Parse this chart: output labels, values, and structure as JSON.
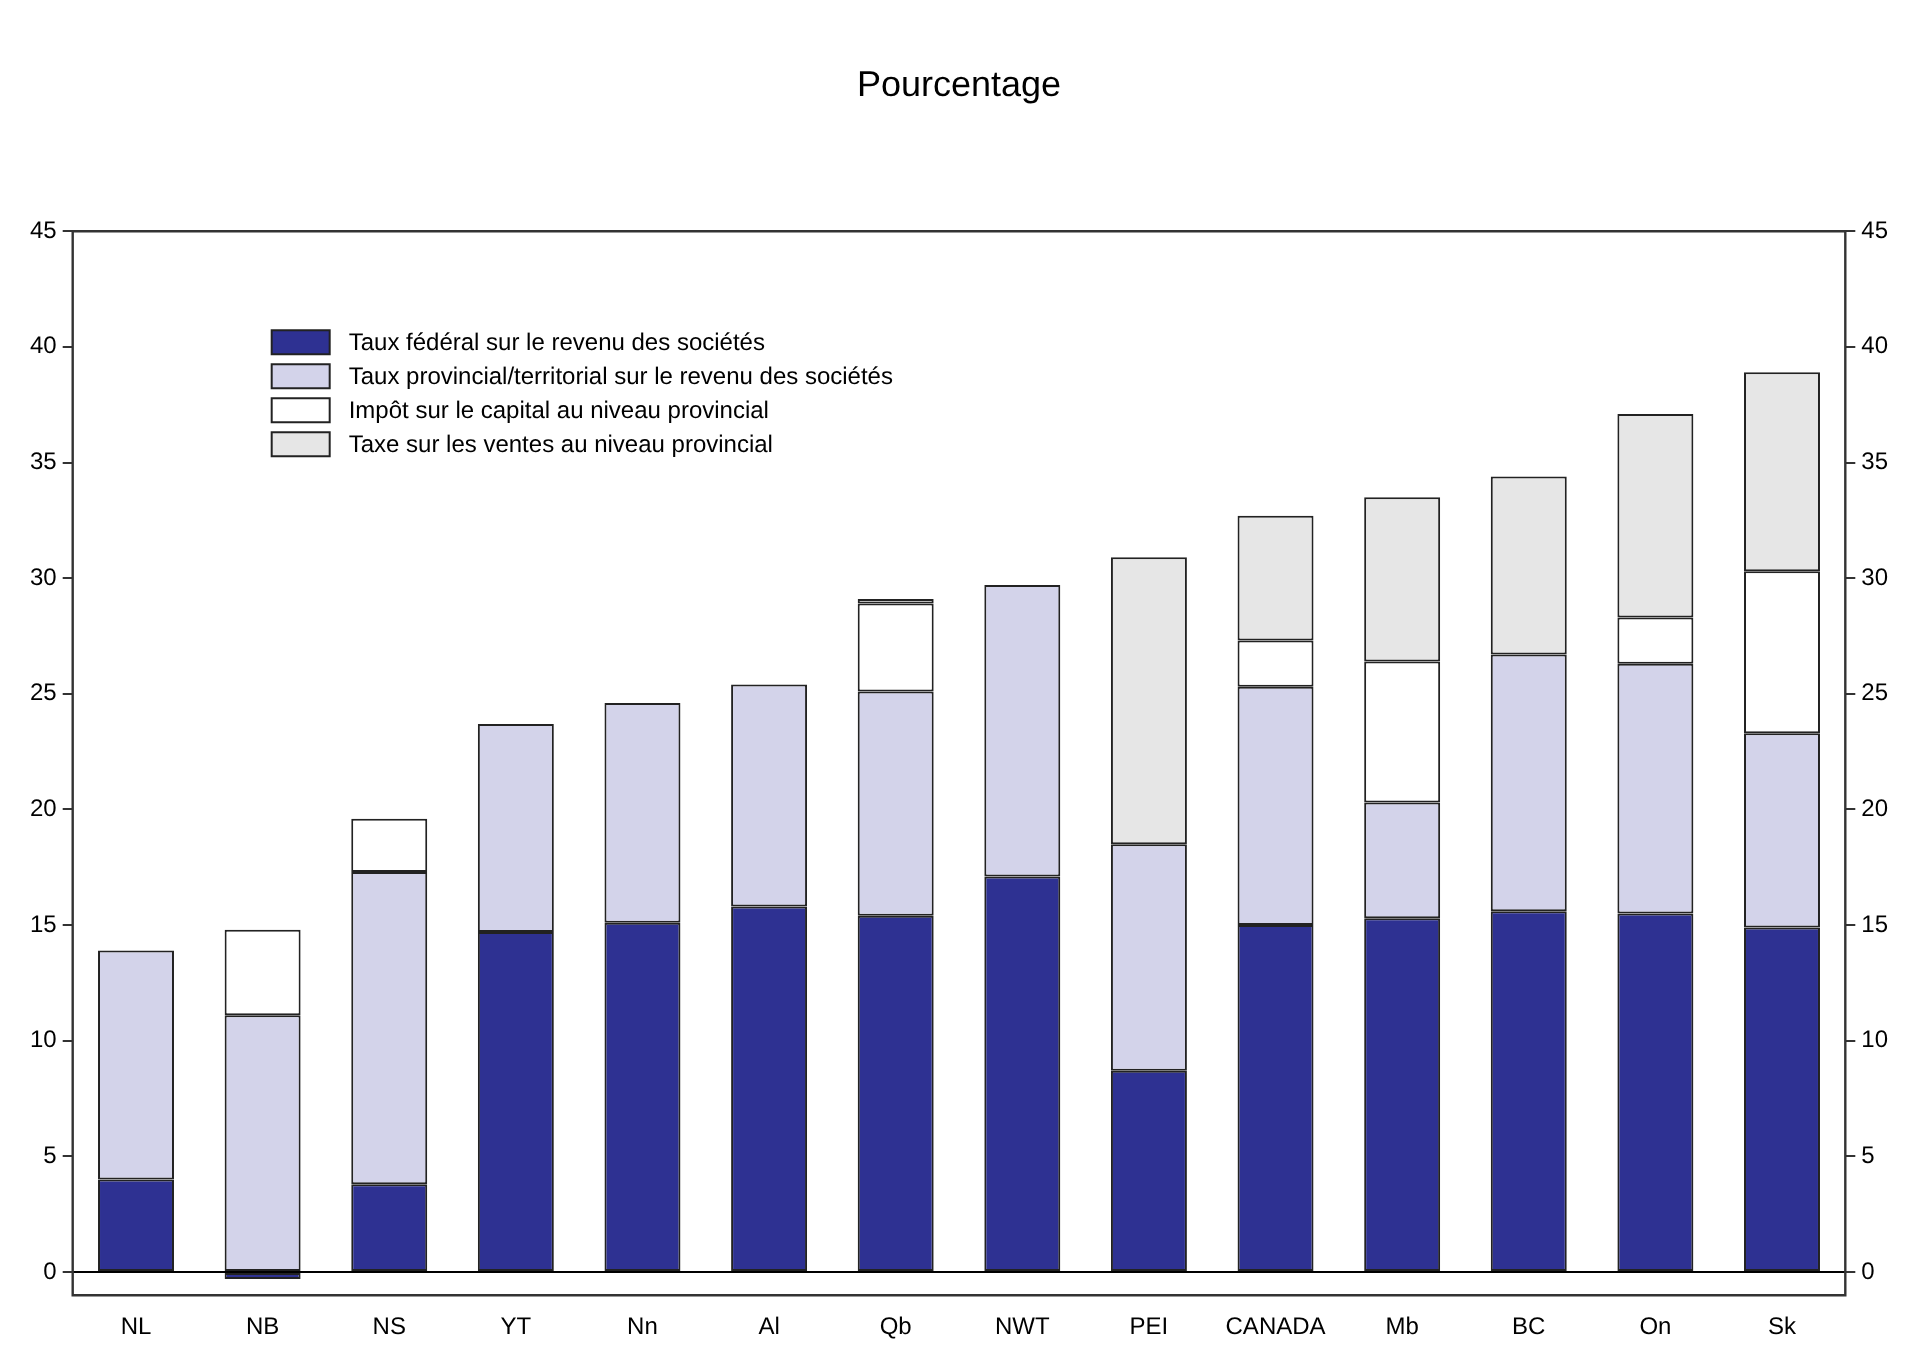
{
  "chart_data": {
    "type": "bar",
    "title": "Pourcentage",
    "stacked": true,
    "categories": [
      "NL",
      "NB",
      "NS",
      "YT",
      "Nn",
      "Al",
      "Qb",
      "NWT",
      "PEI",
      "CANADA",
      "Mb",
      "BC",
      "On",
      "Sk"
    ],
    "series": [
      {
        "name": "Taux fédéral sur le revenu des sociétés",
        "color": "#2e3192",
        "values": [
          4.0,
          -0.3,
          3.8,
          14.7,
          15.1,
          15.8,
          15.4,
          17.1,
          8.7,
          15.0,
          15.3,
          15.6,
          15.5,
          14.9
        ]
      },
      {
        "name": "Taux provincial/territorial sur le revenu des sociétés",
        "color": "#d3d3ea",
        "values": [
          9.9,
          11.1,
          13.5,
          9.0,
          9.5,
          9.6,
          9.7,
          12.6,
          9.8,
          10.3,
          5.0,
          11.1,
          10.8,
          8.4
        ]
      },
      {
        "name": "Impôt sur le capital au niveau provincial",
        "color": "#ffffff",
        "values": [
          null,
          3.7,
          2.3,
          null,
          null,
          null,
          3.8,
          null,
          null,
          2.0,
          6.1,
          null,
          2.0,
          7.0
        ]
      },
      {
        "name": "Taxe sur les ventes au niveau provincial",
        "color": "#e6e6e6",
        "values": [
          null,
          null,
          null,
          null,
          null,
          null,
          0.2,
          null,
          12.4,
          5.4,
          7.1,
          7.7,
          8.8,
          8.6
        ]
      }
    ],
    "ylim": [
      -1,
      45
    ],
    "yticks": [
      0,
      5,
      10,
      15,
      20,
      25,
      30,
      35,
      40,
      45
    ],
    "y2lim": [
      -1,
      45
    ],
    "y2ticks": [
      0,
      5,
      10,
      15,
      20,
      25,
      30,
      35,
      40,
      45
    ],
    "ref_lines": [
      {
        "axis": "y",
        "value": 0,
        "color": "#000000"
      }
    ],
    "grid": false,
    "legend": "top left"
  }
}
